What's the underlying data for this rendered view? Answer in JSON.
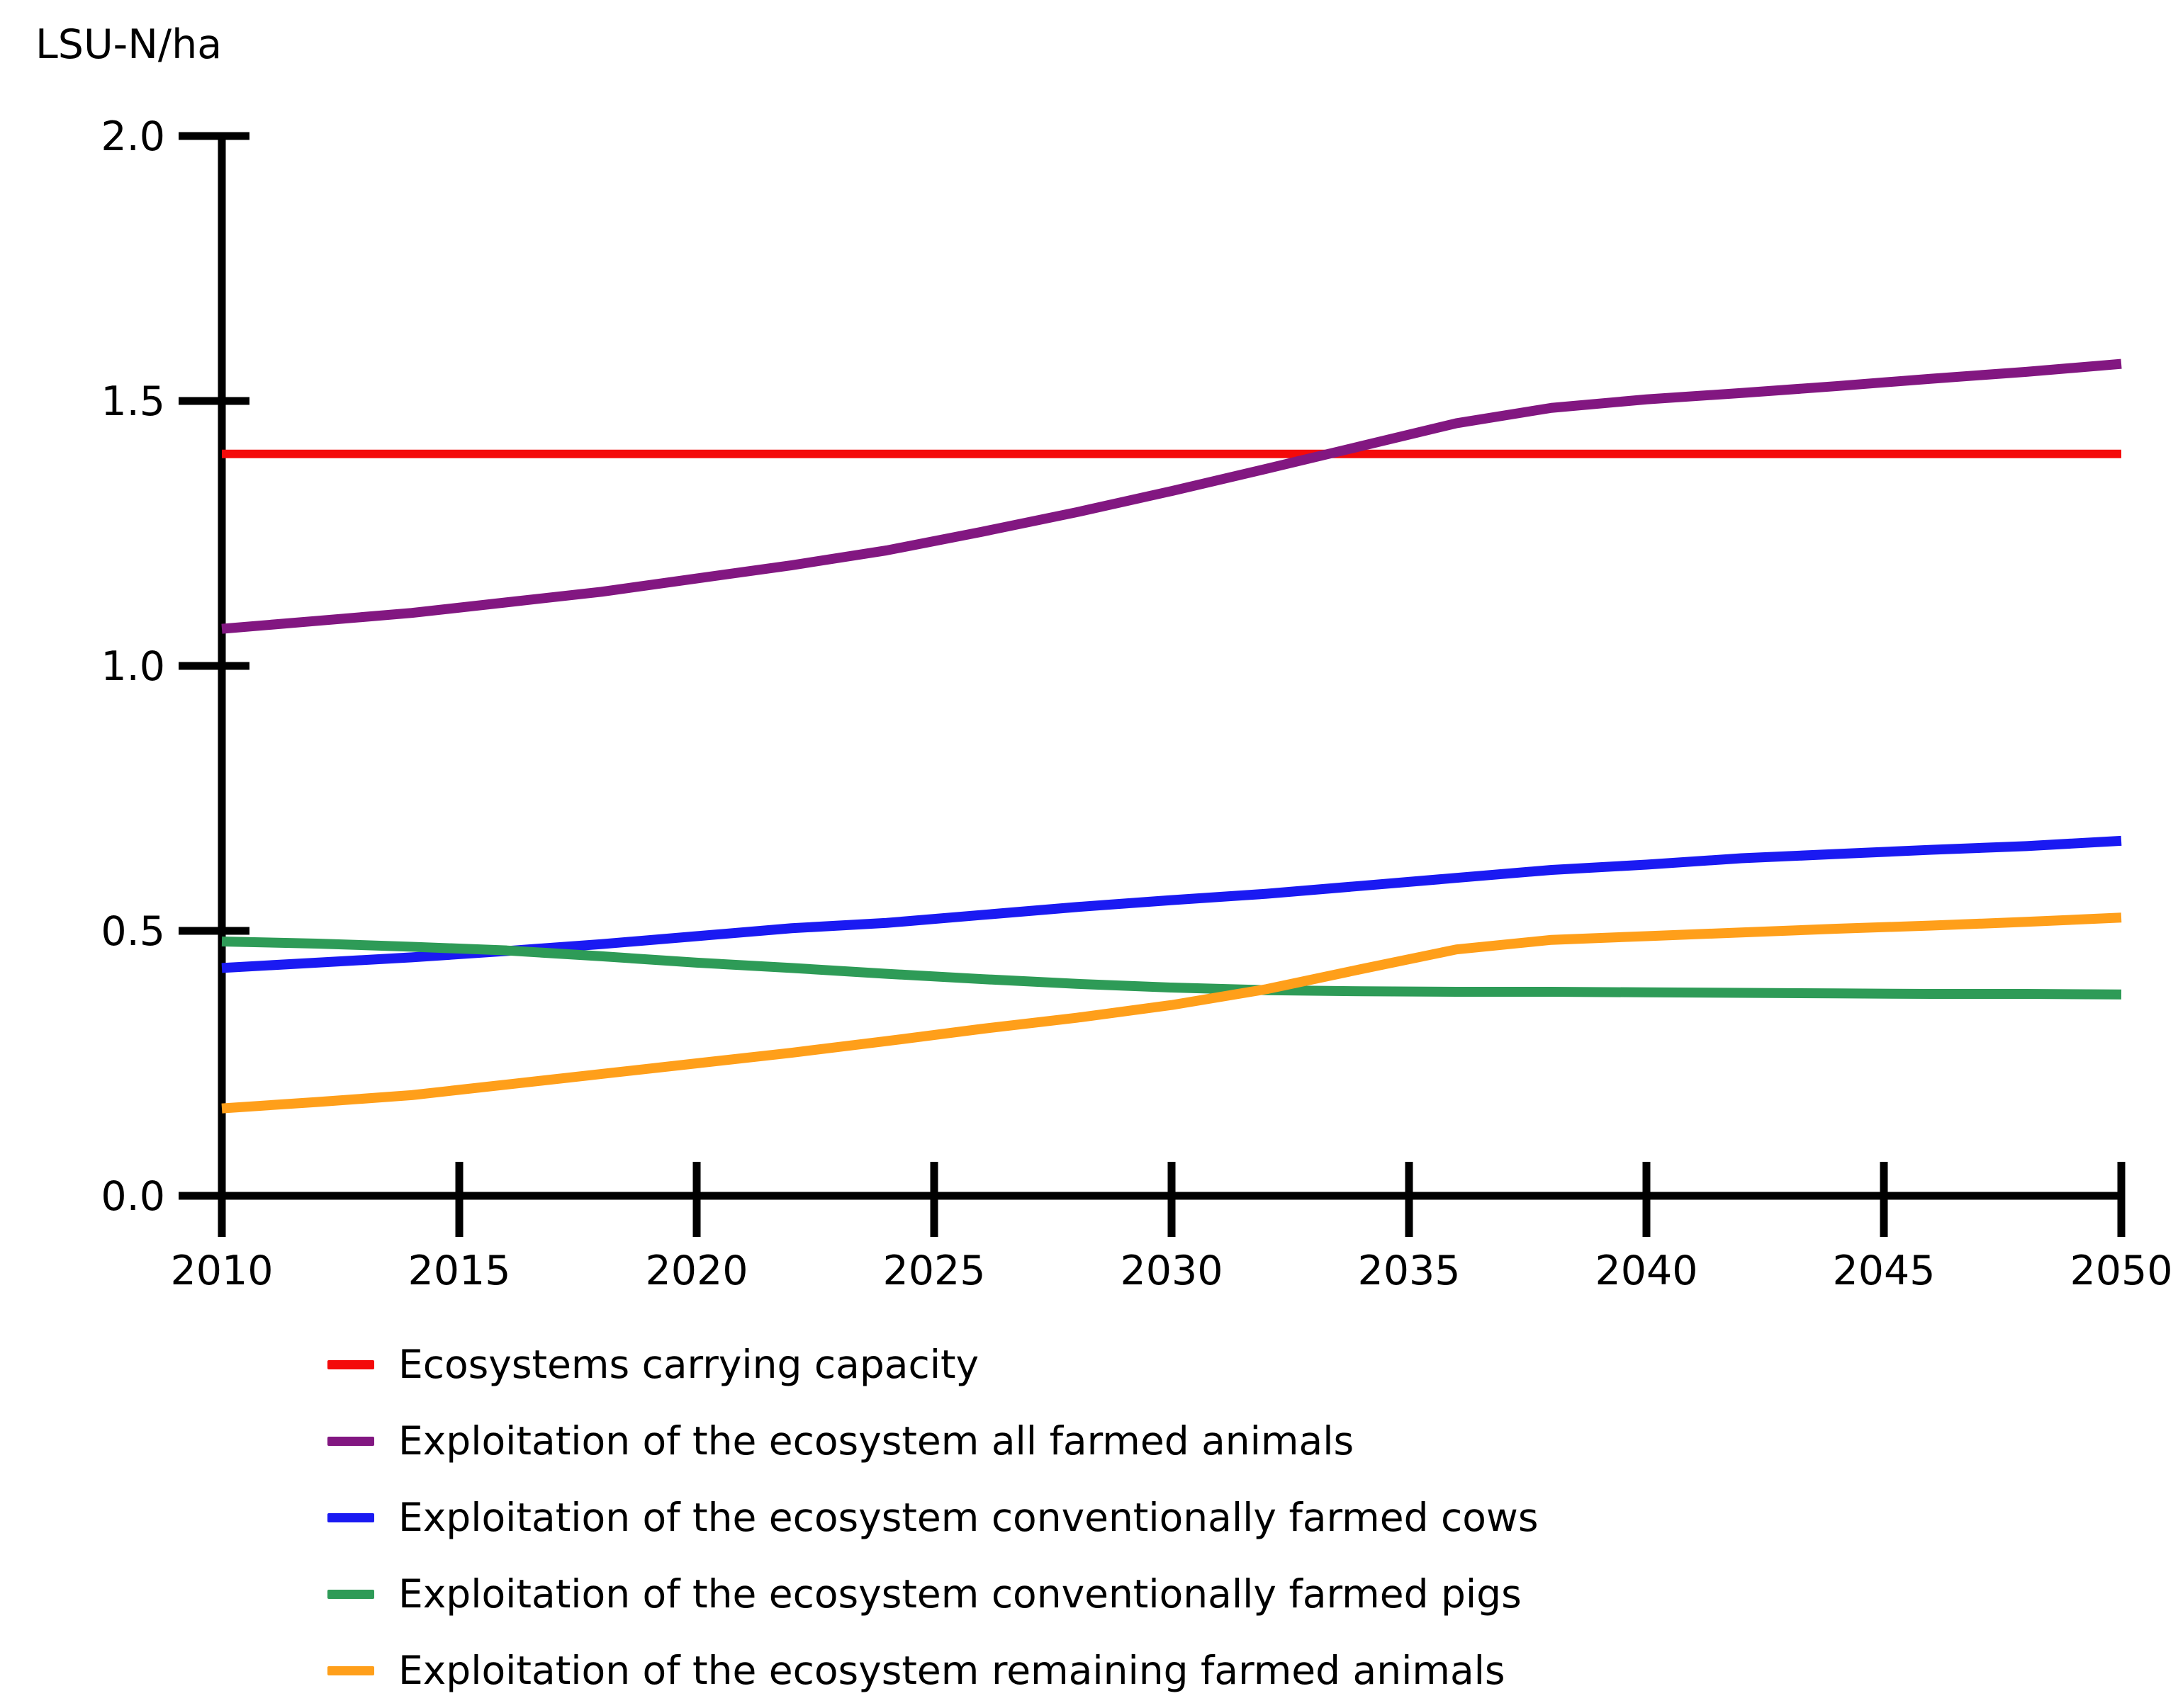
{
  "page": {
    "background": "#ffffff"
  },
  "chart": {
    "y_axis_title": "LSU-N/ha"
  },
  "chart_data": {
    "type": "line",
    "title": "",
    "xlabel": "",
    "ylabel": "LSU-N/ha",
    "xlim": [
      2010,
      2050
    ],
    "ylim": [
      0.0,
      2.0
    ],
    "x_ticks": [
      2010,
      2015,
      2020,
      2025,
      2030,
      2035,
      2040,
      2045,
      2050
    ],
    "y_ticks": [
      0.0,
      0.5,
      1.0,
      1.5,
      2.0
    ],
    "grid": false,
    "legend_position": "bottom-left",
    "x": [
      2010,
      2012,
      2014,
      2016,
      2018,
      2020,
      2022,
      2024,
      2026,
      2028,
      2030,
      2032,
      2034,
      2036,
      2038,
      2040,
      2042,
      2044,
      2046,
      2048,
      2050
    ],
    "series": [
      {
        "name": "Ecosystems carrying capacity",
        "color": "#F40A0A",
        "width": 12,
        "values": [
          1.4,
          1.4,
          1.4,
          1.4,
          1.4,
          1.4,
          1.4,
          1.4,
          1.4,
          1.4,
          1.4,
          1.4,
          1.4,
          1.4,
          1.4,
          1.4,
          1.4,
          1.4,
          1.4,
          1.4,
          1.4
        ]
      },
      {
        "name": "Exploitation of the ecosystem all farmed animals",
        "color": "#821781",
        "width": 14,
        "values": [
          1.07,
          1.085,
          1.1,
          1.12,
          1.14,
          1.165,
          1.19,
          1.218,
          1.253,
          1.29,
          1.33,
          1.372,
          1.415,
          1.458,
          1.487,
          1.503,
          1.515,
          1.528,
          1.542,
          1.555,
          1.57
        ]
      },
      {
        "name": "Exploitation of the ecosystem conventionally farmed cows",
        "color": "#1A1AF2",
        "width": 14,
        "values": [
          0.43,
          0.44,
          0.45,
          0.462,
          0.475,
          0.49,
          0.505,
          0.515,
          0.53,
          0.545,
          0.558,
          0.57,
          0.585,
          0.6,
          0.615,
          0.625,
          0.637,
          0.645,
          0.653,
          0.66,
          0.67
        ]
      },
      {
        "name": "Exploitation of the ecosystem conventionally farmed pigs",
        "color": "#2E9B57",
        "width": 14,
        "values": [
          0.48,
          0.476,
          0.47,
          0.463,
          0.452,
          0.44,
          0.43,
          0.419,
          0.409,
          0.4,
          0.393,
          0.388,
          0.386,
          0.385,
          0.385,
          0.384,
          0.383,
          0.382,
          0.381,
          0.381,
          0.38
        ]
      },
      {
        "name": "Exploitation of the ecosystem remaining farmed animals",
        "color": "#FF9F1A",
        "width": 14,
        "values": [
          0.165,
          0.177,
          0.19,
          0.21,
          0.23,
          0.25,
          0.27,
          0.292,
          0.315,
          0.336,
          0.36,
          0.39,
          0.428,
          0.465,
          0.483,
          0.49,
          0.497,
          0.504,
          0.51,
          0.517,
          0.525
        ]
      }
    ]
  }
}
